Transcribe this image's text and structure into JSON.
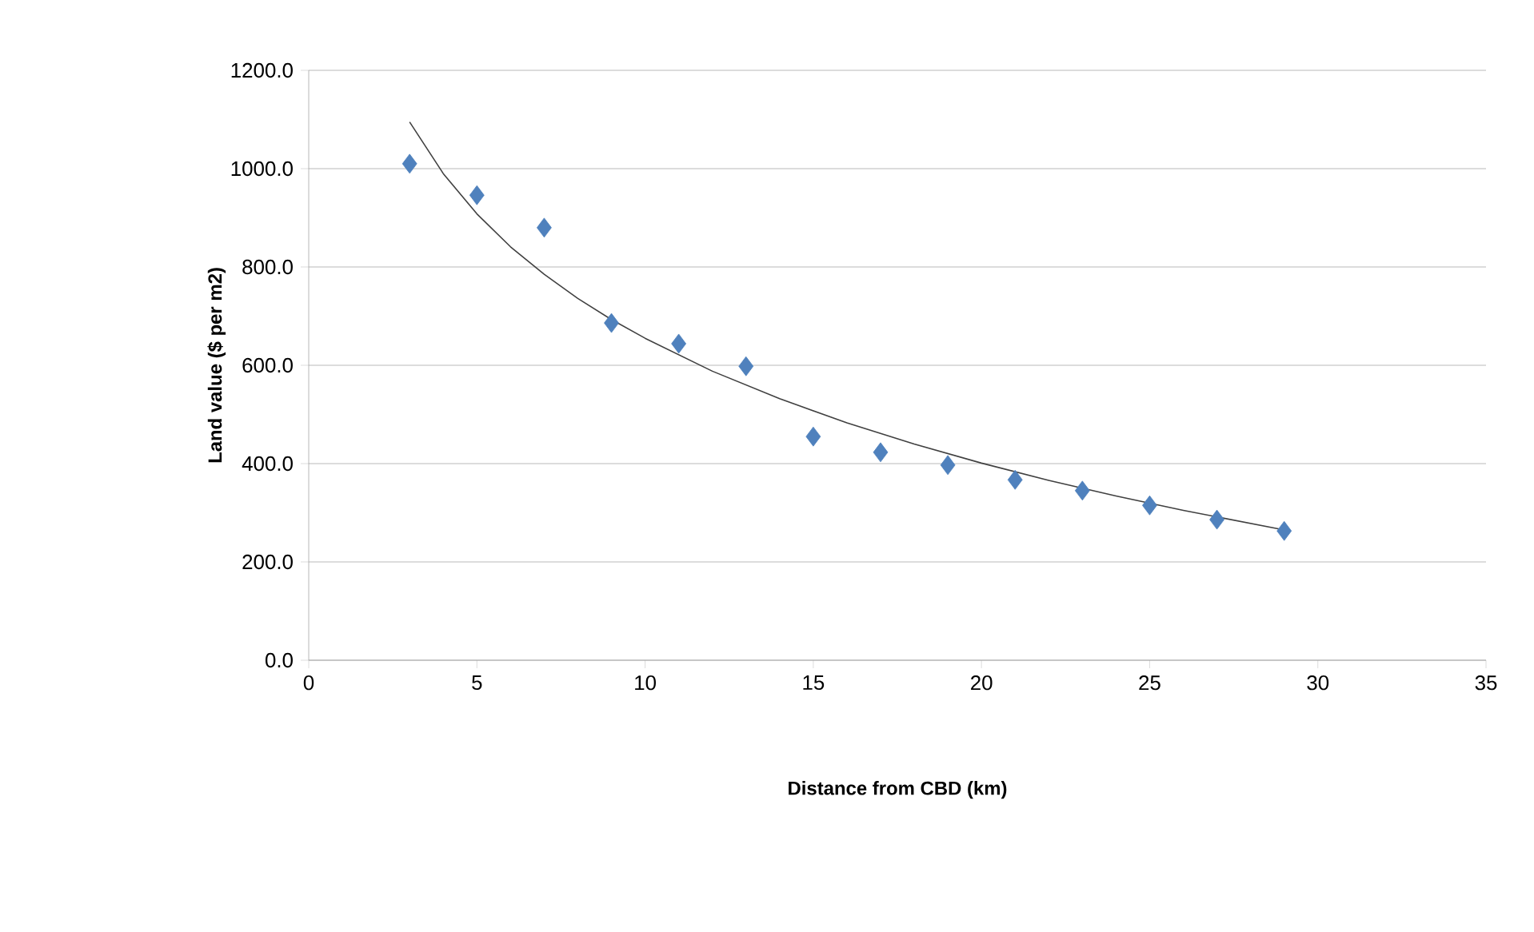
{
  "chart_data": {
    "type": "scatter",
    "xlabel": "Distance from CBD (km)",
    "ylabel": "Land value ($ per m2)",
    "xlim": [
      0,
      35
    ],
    "ylim": [
      0,
      1200
    ],
    "xticks": [
      0,
      5,
      10,
      15,
      20,
      25,
      30,
      35
    ],
    "yticks": [
      {
        "value": 0,
        "label": "0.0"
      },
      {
        "value": 200,
        "label": "200.0"
      },
      {
        "value": 400,
        "label": "400.0"
      },
      {
        "value": 600,
        "label": "600.0"
      },
      {
        "value": 800,
        "label": "800.0"
      },
      {
        "value": 1000,
        "label": "1000.0"
      },
      {
        "value": 1200,
        "label": "1200.0"
      }
    ],
    "grid": "y",
    "marker": "diamond",
    "series": [
      {
        "color": "#4f81bd",
        "x": [
          3,
          5,
          7,
          9,
          11,
          13,
          15,
          17,
          19,
          21,
          23,
          25,
          27,
          29
        ],
        "values": [
          1010,
          946,
          880,
          686,
          644,
          598,
          455,
          423,
          397,
          367,
          345,
          315,
          286,
          263
        ]
      },
      {
        "type": "line",
        "color": "#404040",
        "marker": "none",
        "line_style": "solid",
        "x": [
          3,
          4,
          5,
          6,
          7,
          8,
          9,
          10,
          12,
          14,
          16,
          18,
          20,
          22,
          24,
          26,
          29
        ],
        "values": [
          1095,
          990,
          908,
          841,
          785,
          736,
          693,
          655,
          588,
          532,
          483,
          440,
          401,
          366,
          334,
          305,
          265
        ]
      }
    ]
  }
}
